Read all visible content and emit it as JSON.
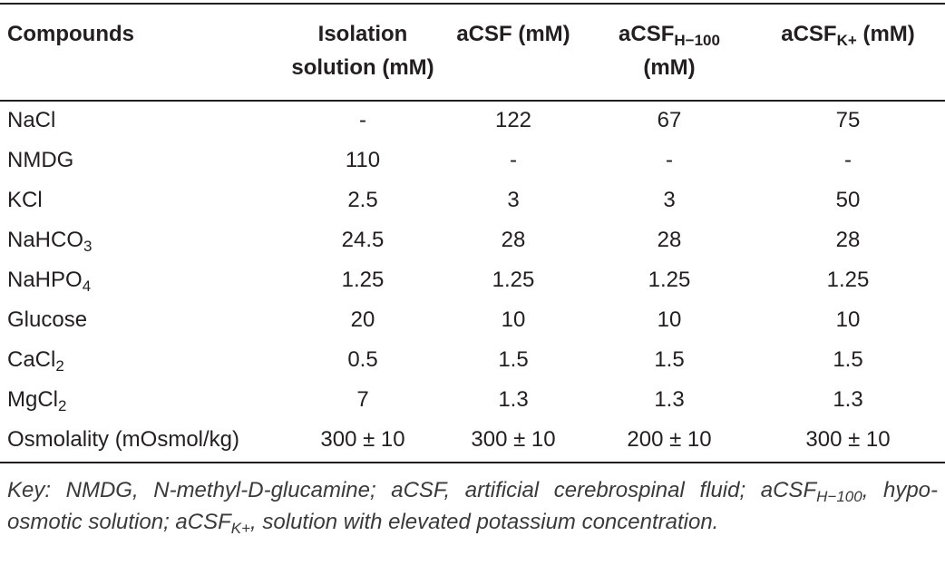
{
  "table": {
    "header": [
      [
        "Compounds"
      ],
      [
        "Isolation",
        "solution (mM)"
      ],
      [
        "aCSF (mM)"
      ],
      [
        [
          "aCSF",
          {
            "sub": "H−100"
          }
        ],
        "(mM)"
      ],
      [
        [
          "aCSF",
          {
            "sub": "K+"
          },
          " (mM)"
        ]
      ]
    ],
    "rows": [
      [
        "NaCl",
        "-",
        "122",
        "67",
        "75"
      ],
      [
        "NMDG",
        "110",
        "-",
        "-",
        "-"
      ],
      [
        "KCl",
        "2.5",
        "3",
        "3",
        "50"
      ],
      [
        [
          "NaHCO",
          {
            "sub": "3"
          }
        ],
        "24.5",
        "28",
        "28",
        "28"
      ],
      [
        [
          "NaHPO",
          {
            "sub": "4"
          }
        ],
        "1.25",
        "1.25",
        "1.25",
        "1.25"
      ],
      [
        "Glucose",
        "20",
        "10",
        "10",
        "10"
      ],
      [
        [
          "CaCl",
          {
            "sub": "2"
          }
        ],
        "0.5",
        "1.5",
        "1.5",
        "1.5"
      ],
      [
        [
          "MgCl",
          {
            "sub": "2"
          }
        ],
        "7",
        "1.3",
        "1.3",
        "1.3"
      ],
      [
        "Osmolality (mOsmol/kg)",
        "300 ± 10",
        "300 ± 10",
        "200 ± 10",
        "300 ± 10"
      ]
    ],
    "footnote": [
      "Key: NMDG, N-methyl-D-glucamine; aCSF, artificial cerebrospinal fluid; aCSF",
      {
        "sub": "H−100"
      },
      ", hypo-osmotic solution; aCSF",
      {
        "sub": "K+"
      },
      ", solution with elevated potassium concentration."
    ]
  }
}
